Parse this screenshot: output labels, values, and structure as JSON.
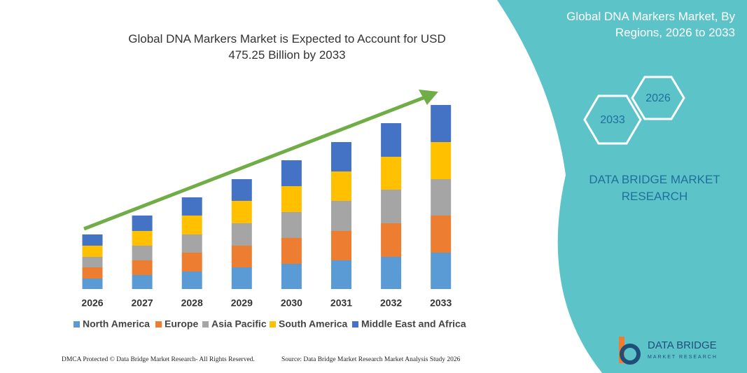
{
  "chart_data": {
    "type": "stacked_bar",
    "title": "Global DNA Markers Market is Expected to Account for USD 475.25 Billion by 2033",
    "categories": [
      "2026",
      "2027",
      "2028",
      "2029",
      "2030",
      "2031",
      "2032",
      "2033"
    ],
    "series": [
      {
        "name": "North America",
        "color": "#5b9bd5",
        "values": [
          15,
          20,
          25,
          31,
          36,
          41,
          46,
          52
        ]
      },
      {
        "name": "Europe",
        "color": "#ed7d31",
        "values": [
          16,
          21,
          27,
          31,
          37,
          42,
          48,
          53
        ]
      },
      {
        "name": "Asia Pacific",
        "color": "#a5a5a5",
        "values": [
          15,
          21,
          26,
          32,
          37,
          43,
          48,
          52
        ]
      },
      {
        "name": "South America",
        "color": "#ffc000",
        "values": [
          16,
          21,
          27,
          32,
          37,
          42,
          47,
          53
        ]
      },
      {
        "name": "Middle East and Africa",
        "color": "#4472c4",
        "values": [
          16,
          22,
          26,
          31,
          37,
          42,
          48,
          53
        ]
      }
    ],
    "legend": "bottom"
  },
  "side_panel": {
    "title": "Global DNA Markers Market, By Regions, 2026 to 2033",
    "hexagons": [
      "2026",
      "2033"
    ],
    "brand": "DATA BRIDGE MARKET RESEARCH"
  },
  "logo": {
    "name": "DATA BRIDGE",
    "tagline": "MARKET RESEARCH"
  },
  "footer": {
    "left": "DMCA Protected © Data Bridge Market Research- All Rights Reserved.",
    "right": "Source: Data Bridge Market Research  Market Analysis Study 2026"
  }
}
